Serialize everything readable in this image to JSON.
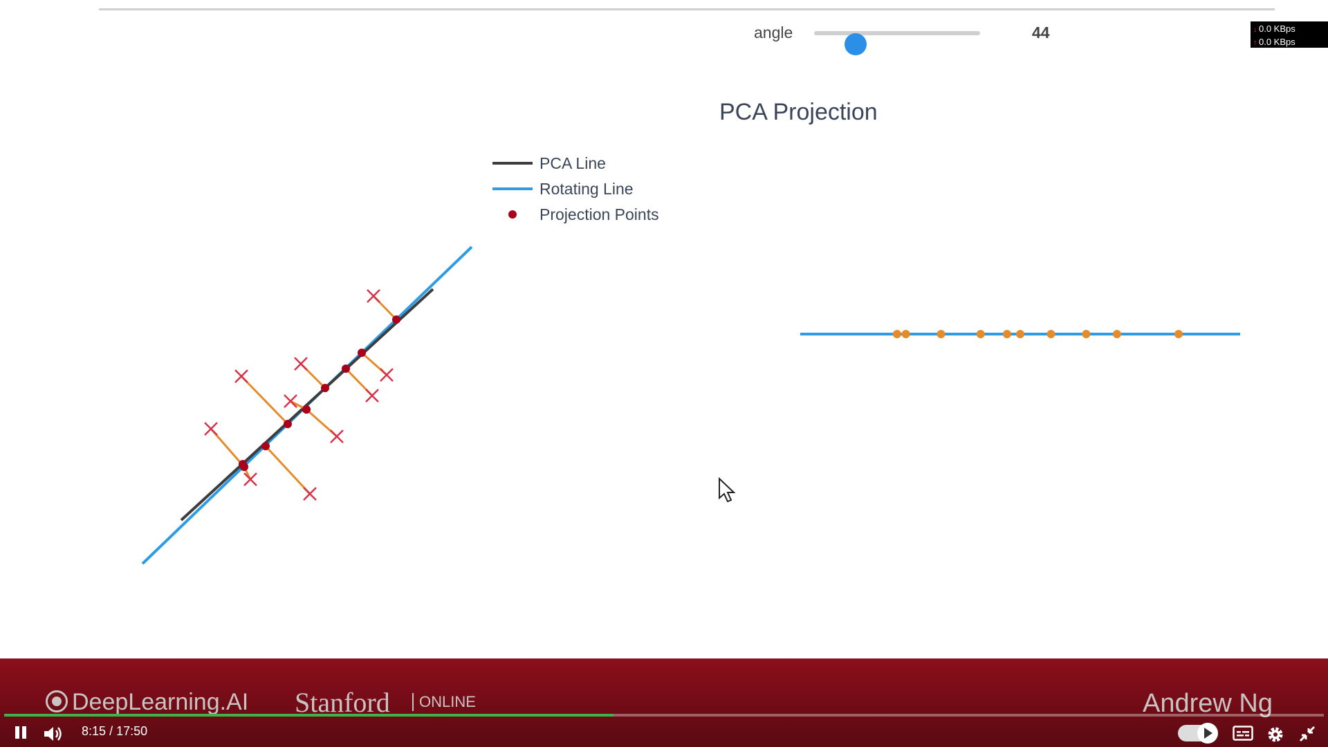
{
  "slider": {
    "label": "angle",
    "value": "44",
    "fraction": 0.25
  },
  "network": {
    "down": "0.0 KBps",
    "up": "0.0 KBps"
  },
  "chart": {
    "title": "PCA Projection",
    "legend": [
      {
        "label": "PCA Line",
        "color": "#3d3d3d",
        "kind": "line"
      },
      {
        "label": "Rotating Line",
        "color": "#2e9be6",
        "kind": "line"
      },
      {
        "label": "Projection Points",
        "color": "#a8001c",
        "kind": "dot"
      }
    ]
  },
  "chart_data": {
    "type": "scatter",
    "title": "PCA Projection",
    "series": [
      {
        "name": "PCA Line",
        "color": "#3d3d3d"
      },
      {
        "name": "Rotating Line",
        "color": "#2e9be6"
      },
      {
        "name": "Projection Points",
        "color": "#a8001c"
      }
    ],
    "projected_positions": [
      0.22,
      0.24,
      0.32,
      0.41,
      0.47,
      0.5,
      0.57,
      0.65,
      0.72,
      0.86
    ],
    "rotation_angle_deg": 44
  },
  "player": {
    "brand_left": "DeepLearning.AI",
    "brand_mid": "Stanford",
    "brand_online": "ONLINE",
    "presenter": "Andrew Ng",
    "current_time": "8:15",
    "separator": "/",
    "duration": "17:50",
    "progress": 0.462
  },
  "colors": {
    "rotating_line": "#2e9be6",
    "pca_line": "#3d3d3d",
    "projection_point": "#a8001c",
    "data_point": "#d6324a",
    "connector": "#e58b2a",
    "projected_dot": "#e58b2a",
    "player_bg": "#7a0c17",
    "progress": "#3cb44b"
  }
}
